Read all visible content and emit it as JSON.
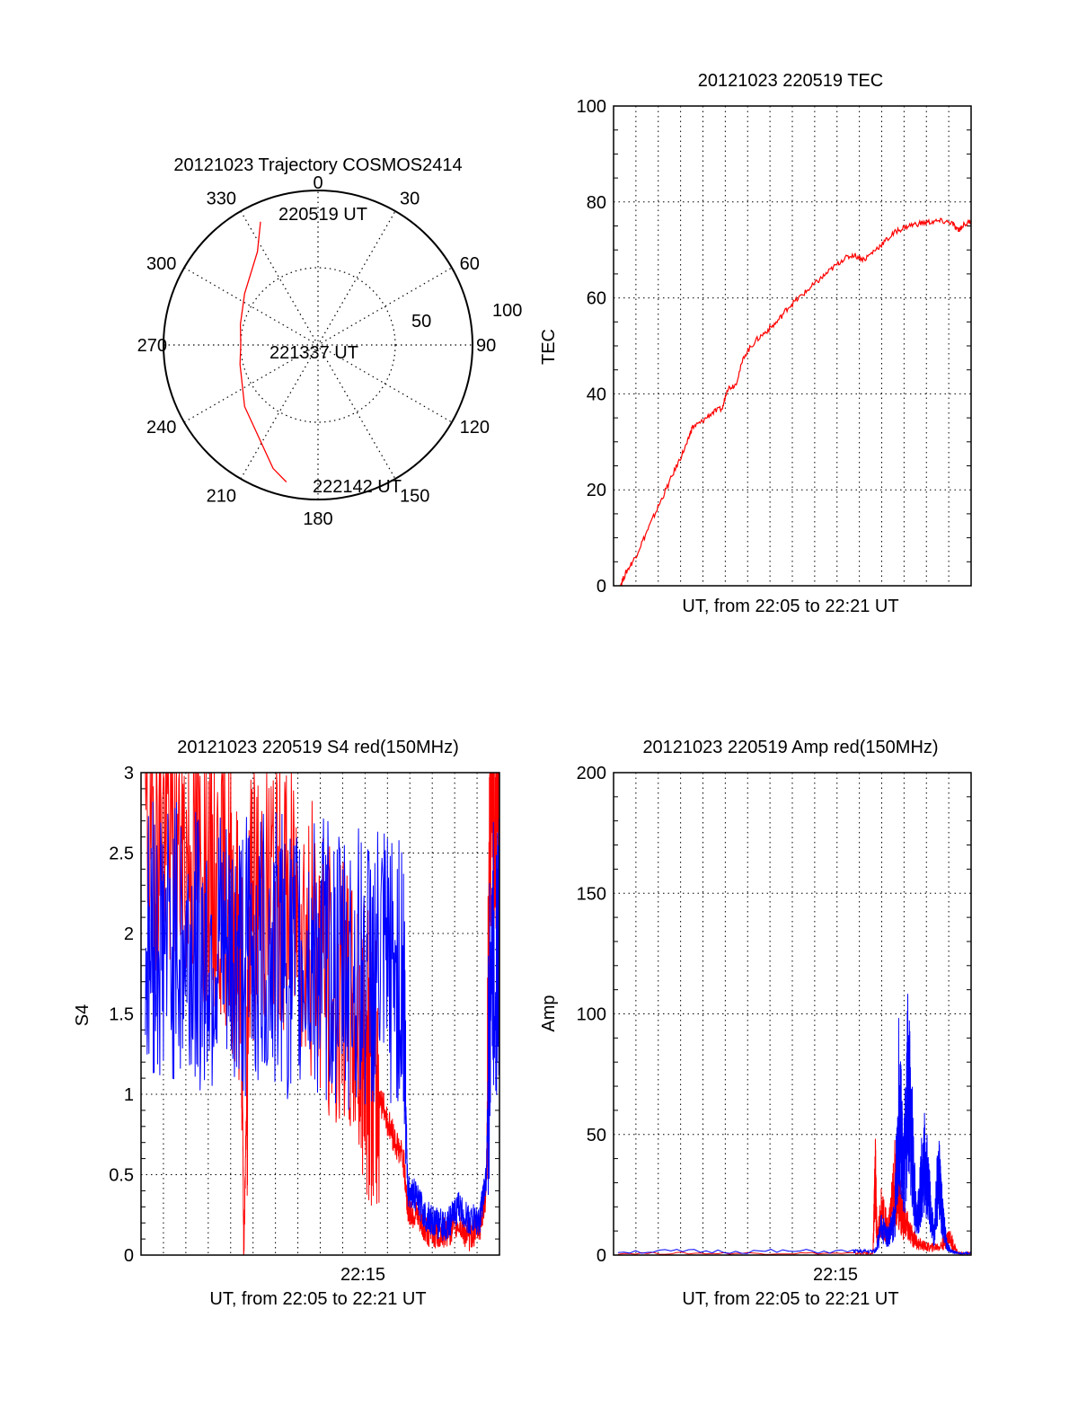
{
  "colors": {
    "red": "#ff0000",
    "blue": "#0000ff",
    "axis": "#000000"
  },
  "chart_data": [
    {
      "type": "polar",
      "id": "trajectory",
      "title": "20121023 Trajectory COSMOS2414",
      "angle_labels": [
        "0",
        "30",
        "60",
        "90",
        "120",
        "150",
        "180",
        "210",
        "240",
        "270",
        "300",
        "330"
      ],
      "radius_labels": [
        "50",
        "100"
      ],
      "rlim": [
        0,
        100
      ],
      "grid": true,
      "series": [
        {
          "name": "trajectory",
          "color": "red",
          "points_az_r": [
            [
              335,
              88
            ],
            [
              327,
              72
            ],
            [
              305,
              58
            ],
            [
              285,
              52
            ],
            [
              270,
              50
            ],
            [
              256,
              52
            ],
            [
              230,
              62
            ],
            [
              200,
              85
            ],
            [
              193,
              91
            ]
          ]
        }
      ],
      "annotations": [
        "220519 UT",
        "221337 UT",
        "222142 UT"
      ]
    },
    {
      "type": "line",
      "id": "tec",
      "title": "20121023 220519 TEC",
      "xlabel": "UT, from 22:05 to 22:21 UT",
      "ylabel": "TEC",
      "xlim": [
        0,
        16.4
      ],
      "ylim": [
        0,
        100
      ],
      "yticks": [
        "0",
        "20",
        "40",
        "60",
        "80",
        "100"
      ],
      "grid": true,
      "series": [
        {
          "name": "TEC",
          "color": "red",
          "x": [
            0.3,
            0.6,
            1.0,
            1.5,
            2.0,
            2.5,
            3.0,
            3.4,
            3.6,
            4.0,
            4.5,
            5.0,
            5.2,
            5.6,
            6.0,
            6.5,
            7.0,
            7.5,
            8.0,
            8.5,
            9.0,
            9.5,
            10.0,
            10.5,
            11.0,
            11.5,
            12.0,
            12.5,
            13.0,
            13.5,
            14.0,
            14.5,
            15.0,
            15.5,
            15.8,
            16.0,
            16.4
          ],
          "y": [
            0,
            3,
            6,
            11,
            16,
            21,
            26,
            30,
            33,
            34,
            36,
            37,
            41,
            42,
            48,
            51,
            53,
            55,
            58,
            60,
            62,
            64,
            66,
            68,
            69,
            68,
            70,
            72,
            74,
            75,
            75.5,
            75.8,
            76,
            75.7,
            74,
            75,
            76
          ]
        }
      ]
    },
    {
      "type": "line",
      "id": "s4",
      "title": "20121023 220519 S4 red(150MHz)",
      "xlabel": "UT, from 22:05 to 22:21 UT",
      "ylabel": "S4",
      "xtick_labels": [
        "22:15"
      ],
      "xlim": [
        0,
        16.4
      ],
      "ylim": [
        0,
        3
      ],
      "yticks": [
        "0",
        "0.5",
        "1",
        "1.5",
        "2",
        "2.5",
        "3"
      ],
      "grid": true,
      "series": [
        {
          "name": "red",
          "color": "red",
          "x": [
            0.2,
            1,
            2,
            3,
            4,
            4.6,
            4.7,
            5,
            6,
            7,
            8,
            9,
            10,
            10.5,
            11,
            11.5,
            12,
            12.2,
            12.5,
            13,
            13.5,
            14,
            14.5,
            15,
            15.5,
            15.8,
            16,
            16.4
          ],
          "y": [
            2.6,
            2.7,
            2.5,
            2.4,
            2.3,
            1.8,
            0,
            2.2,
            2.3,
            2.2,
            1.9,
            1.6,
            1.4,
            1.2,
            0.95,
            0.75,
            0.6,
            0.3,
            0.25,
            0.16,
            0.13,
            0.14,
            0.2,
            0.12,
            0.18,
            0.4,
            2.9,
            2.8
          ]
        },
        {
          "name": "blue",
          "color": "blue",
          "x": [
            0.2,
            1,
            2,
            3,
            4,
            5,
            6,
            7,
            8,
            9,
            10,
            11,
            12,
            12.2,
            12.5,
            13,
            13.5,
            14,
            14.5,
            15,
            15.5,
            15.8,
            16,
            16.4
          ],
          "y": [
            1.9,
            2.0,
            1.9,
            1.9,
            1.8,
            1.9,
            1.9,
            1.8,
            1.9,
            1.8,
            1.8,
            1.8,
            1.8,
            0.4,
            0.38,
            0.25,
            0.2,
            0.18,
            0.3,
            0.22,
            0.22,
            0.5,
            1.8,
            1.9
          ]
        }
      ]
    },
    {
      "type": "line",
      "id": "amp",
      "title": "20121023 220519 Amp red(150MHz)",
      "xlabel": "UT, from 22:05 to 22:21 UT",
      "ylabel": "Amp",
      "xtick_labels": [
        "22:15"
      ],
      "xlim": [
        0,
        16.4
      ],
      "ylim": [
        0,
        200
      ],
      "yticks": [
        "0",
        "50",
        "100",
        "150",
        "200"
      ],
      "grid": true,
      "series": [
        {
          "name": "red",
          "color": "red",
          "x": [
            0.2,
            11,
            11.9,
            12.0,
            12.1,
            12.3,
            12.6,
            12.9,
            13.1,
            13.3,
            13.6,
            14.0,
            14.5,
            15.0,
            15.4,
            15.8,
            16.4
          ],
          "y": [
            1,
            1,
            1,
            45,
            8,
            25,
            12,
            40,
            30,
            20,
            12,
            6,
            4,
            5,
            10,
            1,
            1
          ]
        },
        {
          "name": "blue",
          "color": "blue",
          "x": [
            0.2,
            11,
            12.0,
            12.3,
            12.6,
            12.9,
            13.1,
            13.3,
            13.5,
            13.7,
            13.9,
            14.1,
            14.3,
            14.5,
            14.7,
            14.9,
            15.1,
            15.3,
            15.5,
            15.8,
            16.4
          ],
          "y": [
            2,
            2,
            2,
            15,
            10,
            20,
            90,
            40,
            95,
            60,
            15,
            40,
            55,
            30,
            10,
            45,
            20,
            5,
            2,
            1,
            1
          ]
        }
      ]
    }
  ]
}
